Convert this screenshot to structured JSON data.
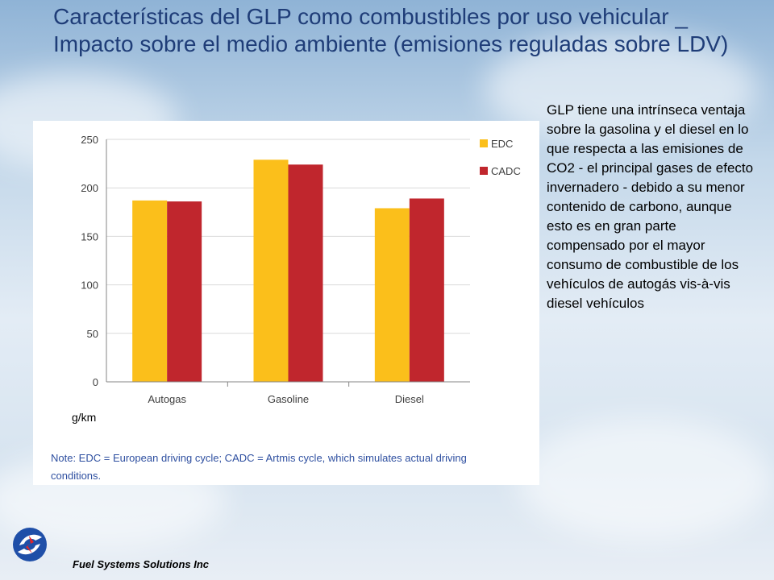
{
  "slide": {
    "title": "Características del GLP como combustibles por uso vehicular _ Impacto sobre el medio ambiente (emisiones reguladas sobre LDV)",
    "unit_label": "g/km",
    "note": "Note: EDC = European driving cycle; CADC = Artmis cycle, which simulates actual driving conditions.",
    "side_text": "GLP tiene una intrínseca ventaja sobre la gasolina y el diesel en lo que respecta a las emisiones de CO2 - el principal gases de efecto invernadero - debido a su menor contenido de carbono, aunque esto es en gran parte compensado por el mayor consumo de combustible de los vehículos de autogás vis-à-vis diesel vehículos",
    "company": "Fuel Systems Solutions Inc",
    "logo_icon": "fuel-systems-logo-icon"
  },
  "chart_data": {
    "type": "bar",
    "categories": [
      "Autogas",
      "Gasoline",
      "Diesel"
    ],
    "series": [
      {
        "name": "EDC",
        "values": [
          187,
          229,
          179
        ],
        "color": "#fbbf1b"
      },
      {
        "name": "CADC",
        "values": [
          186,
          224,
          189
        ],
        "color": "#c0262d"
      }
    ],
    "ylim": [
      0,
      250
    ],
    "yticks": [
      0,
      50,
      100,
      150,
      200,
      250
    ],
    "grid": true,
    "legend_position": "right"
  }
}
